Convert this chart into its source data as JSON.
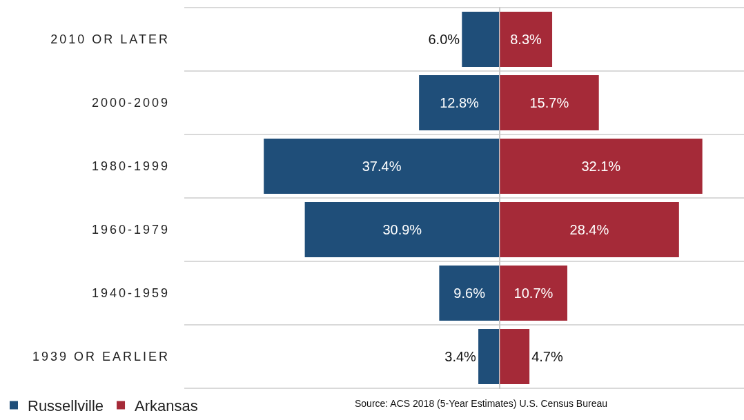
{
  "chart_data": [
    {
      "type": "bar",
      "orientation": "horizontal",
      "categories": [
        "2010 OR LATER",
        "2000-2009",
        "1980-1999",
        "1960-1979",
        "1940-1959",
        "1939 OR EARLIER"
      ],
      "series": [
        {
          "name": "Russellville",
          "color": "#1f4e79",
          "values": [
            6.0,
            12.8,
            37.4,
            30.9,
            9.6,
            3.4
          ],
          "value_labels": [
            "6.0%",
            "12.8%",
            "37.4%",
            "30.9%",
            "9.6%",
            "3.4%"
          ]
        }
      ],
      "xlim": [
        50,
        0
      ],
      "tick_labels": "y",
      "grid": "y",
      "legend": "bottom left",
      "annotations": [
        "Source: ACS 2018 (5-Year Estimates) U.S. Census Bureau"
      ]
    },
    {
      "type": "bar",
      "orientation": "horizontal",
      "categories": [
        null,
        null,
        null,
        null,
        null,
        null
      ],
      "series": [
        {
          "name": "Arkansas",
          "color": "#a52a38",
          "values": [
            8.3,
            15.7,
            32.1,
            28.4,
            10.7,
            4.7
          ],
          "value_labels": [
            "8.3%",
            "15.7%",
            "32.1%",
            "28.4%",
            "10.7%",
            "4.7%"
          ]
        }
      ],
      "xlim": [
        0,
        38.7
      ],
      "tick_labels": false,
      "grid": "y",
      "legend": "bottom left"
    }
  ]
}
